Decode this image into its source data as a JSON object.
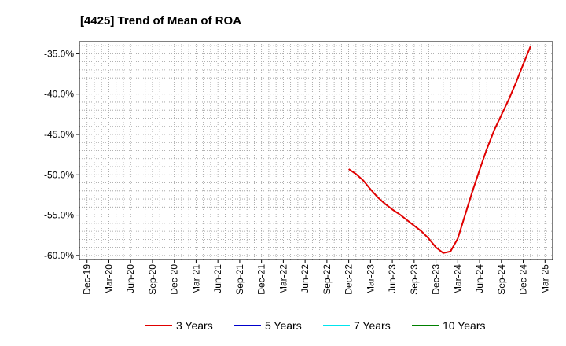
{
  "chart_data": {
    "type": "line",
    "title": "[4425]  Trend of Mean of ROA",
    "xlabel": "",
    "ylabel": "",
    "x_tick_labels": [
      "Dec-19",
      "Mar-20",
      "Jun-20",
      "Sep-20",
      "Dec-20",
      "Mar-21",
      "Jun-21",
      "Sep-21",
      "Dec-21",
      "Mar-22",
      "Jun-22",
      "Sep-22",
      "Dec-22",
      "Mar-23",
      "Jun-23",
      "Sep-23",
      "Dec-23",
      "Mar-24",
      "Jun-24",
      "Sep-24",
      "Dec-24",
      "Mar-25"
    ],
    "y_ticks": [
      -35.0,
      -40.0,
      -45.0,
      -50.0,
      -55.0,
      -60.0
    ],
    "y_tick_labels": [
      "-35.0%",
      "-40.0%",
      "-45.0%",
      "-50.0%",
      "-55.0%",
      "-60.0%"
    ],
    "ylim": [
      -60.5,
      -33.5
    ],
    "grid": true,
    "legend_position": "bottom",
    "series": [
      {
        "name": "3 Years",
        "color": "#e00000",
        "points": [
          [
            "Dec-22",
            -49.3
          ],
          [
            "Jan-23",
            -49.9
          ],
          [
            "Feb-23",
            -50.7
          ],
          [
            "Mar-23",
            -51.8
          ],
          [
            "Apr-23",
            -52.8
          ],
          [
            "May-23",
            -53.6
          ],
          [
            "Jun-23",
            -54.3
          ],
          [
            "Jul-23",
            -54.9
          ],
          [
            "Aug-23",
            -55.6
          ],
          [
            "Sep-23",
            -56.3
          ],
          [
            "Oct-23",
            -57.0
          ],
          [
            "Nov-23",
            -57.9
          ],
          [
            "Dec-23",
            -59.0
          ],
          [
            "Jan-24",
            -59.7
          ],
          [
            "Feb-24",
            -59.5
          ],
          [
            "Mar-24",
            -57.9
          ],
          [
            "Apr-24",
            -55.0
          ],
          [
            "May-24",
            -52.1
          ],
          [
            "Jun-24",
            -49.4
          ],
          [
            "Jul-24",
            -46.8
          ],
          [
            "Aug-24",
            -44.5
          ],
          [
            "Sep-24",
            -42.6
          ],
          [
            "Oct-24",
            -40.7
          ],
          [
            "Nov-24",
            -38.6
          ],
          [
            "Dec-24",
            -36.3
          ],
          [
            "Jan-25",
            -34.1
          ]
        ]
      },
      {
        "name": "5 Years",
        "color": "#0000cc",
        "points": []
      },
      {
        "name": "7 Years",
        "color": "#00e5ee",
        "points": []
      },
      {
        "name": "10 Years",
        "color": "#008000",
        "points": []
      }
    ]
  }
}
